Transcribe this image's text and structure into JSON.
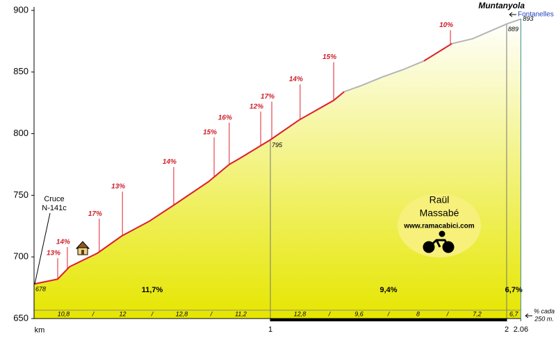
{
  "chart_data": {
    "type": "area",
    "title": "Muntanyola",
    "subtitle": "Fontanelles",
    "x_label": "km",
    "x": [
      0,
      0.1,
      0.15,
      0.268,
      0.371,
      0.488,
      0.591,
      0.738,
      0.826,
      0.871,
      1,
      1.121,
      1.268,
      1.312,
      1.385,
      1.474,
      1.562,
      1.65,
      1.768,
      1.856,
      2,
      2.06
    ],
    "series": [
      {
        "color": "#b4b4b4",
        "values": [
          678,
          682,
          692,
          703,
          717,
          729,
          742,
          761,
          775,
          780,
          795,
          811,
          827,
          834,
          839,
          846,
          852,
          859,
          873,
          877,
          889,
          893
        ]
      }
    ],
    "highlights": {
      "color": "#e0202a",
      "ranges": [
        [
          0,
          1.312
        ],
        [
          1.65,
          1.768
        ]
      ]
    },
    "xlim": [
      0,
      2.06
    ],
    "xticks": [
      1,
      2,
      2.06
    ],
    "ylim": [
      650,
      900
    ],
    "yticks": [
      650,
      700,
      750,
      800,
      850,
      900
    ],
    "point_labels": [
      {
        "x": 0,
        "value": 678
      },
      {
        "x": 1,
        "value": 795
      },
      {
        "x": 2,
        "value": 889
      },
      {
        "x": 2.06,
        "value": 893
      }
    ],
    "annotations": [
      {
        "text": "13%",
        "x": 0.1,
        "y": 699
      },
      {
        "text": "14%",
        "x": 0.141,
        "y": 708
      },
      {
        "text": "17%",
        "x": 0.276,
        "y": 731
      },
      {
        "text": "13%",
        "x": 0.374,
        "y": 753
      },
      {
        "text": "14%",
        "x": 0.591,
        "y": 773
      },
      {
        "text": "15%",
        "x": 0.762,
        "y": 797
      },
      {
        "text": "16%",
        "x": 0.826,
        "y": 809
      },
      {
        "text": "12%",
        "x": 0.959,
        "y": 818
      },
      {
        "text": "17%",
        "x": 1.006,
        "y": 826
      },
      {
        "text": "14%",
        "x": 1.126,
        "y": 840
      },
      {
        "text": "15%",
        "x": 1.268,
        "y": 858
      },
      {
        "text": "10%",
        "x": 1.762,
        "y": 884
      }
    ],
    "note": {
      "lines": [
        "Cruce",
        "N-141c"
      ]
    },
    "sections": {
      "values": [
        11.7,
        9.4,
        6.7
      ],
      "value_labels": [
        "11,7%",
        "9,4%",
        "6,7%"
      ]
    },
    "strip": {
      "values": [
        10.8,
        12,
        12.8,
        11.2,
        12.8,
        9.6,
        8,
        7.2,
        6.7
      ],
      "value_labels": [
        "10,8",
        "12",
        "12,8",
        "11,2",
        "12,8",
        "9,6",
        "8",
        "7,2",
        "6,7"
      ],
      "caption": [
        "% cada",
        "250 m."
      ]
    },
    "logo": {
      "name": [
        "Raül",
        "Massabé"
      ],
      "url": "www.ramacabici.com"
    }
  }
}
